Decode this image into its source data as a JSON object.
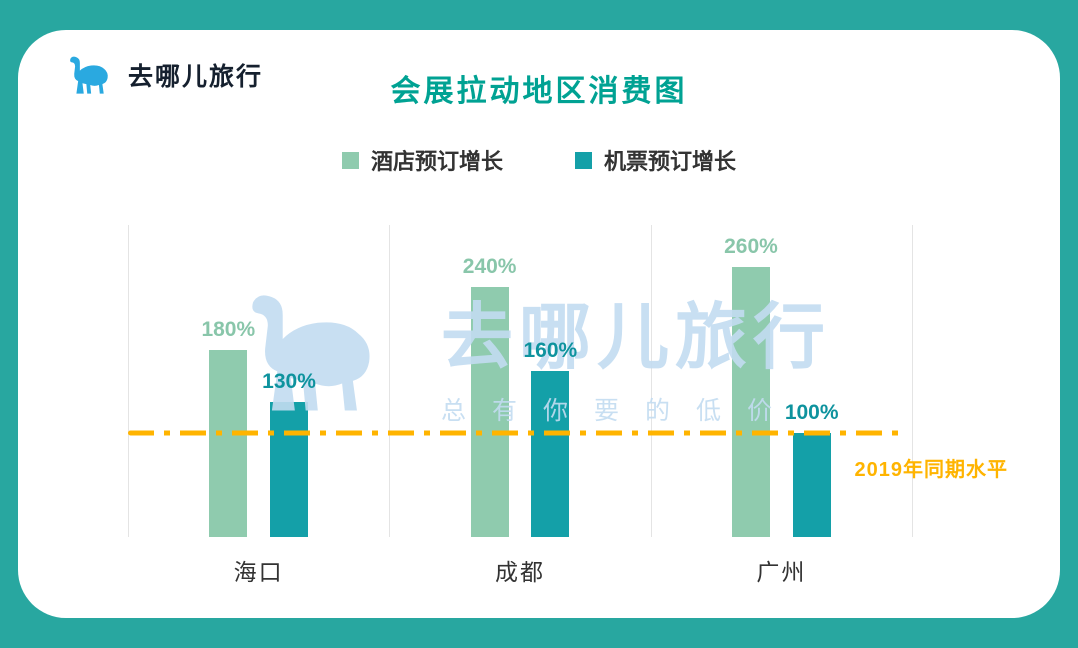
{
  "colors": {
    "bg": "#28A7A0",
    "card": "#FFFFFF",
    "title": "#00A293",
    "text": "#333333",
    "grid": "#E4E4E4",
    "baseline": "#FFB400",
    "watermark": "#C3DCF1",
    "logo_camel": "#2AA9E0",
    "logo_text": "#15202E"
  },
  "header": {
    "brand": "去哪儿旅行",
    "title": "会展拉动地区消费图"
  },
  "watermark": {
    "brand": "去哪儿旅行",
    "slogan": "总有你要的低价"
  },
  "chart_data": {
    "type": "bar",
    "title": "会展拉动地区消费图",
    "categories": [
      "海口",
      "成都",
      "广州"
    ],
    "series": [
      {
        "name": "酒店预订增长",
        "color": "#8FCBAE",
        "label_color": "#89C6AA",
        "values": [
          180,
          240,
          260
        ],
        "labels": [
          "180%",
          "240%",
          "260%"
        ]
      },
      {
        "name": "机票预订增长",
        "color": "#14A0A8",
        "label_color": "#0E939E",
        "values": [
          130,
          160,
          100
        ],
        "labels": [
          "130%",
          "160%",
          "100%"
        ]
      }
    ],
    "value_suffix": "%",
    "ylim": [
      0,
      300
    ],
    "baseline": {
      "value": 100,
      "label": "2019年同期水平"
    },
    "legend_position": "top",
    "grid": "vertical-separators",
    "xlabel": "",
    "ylabel": ""
  }
}
